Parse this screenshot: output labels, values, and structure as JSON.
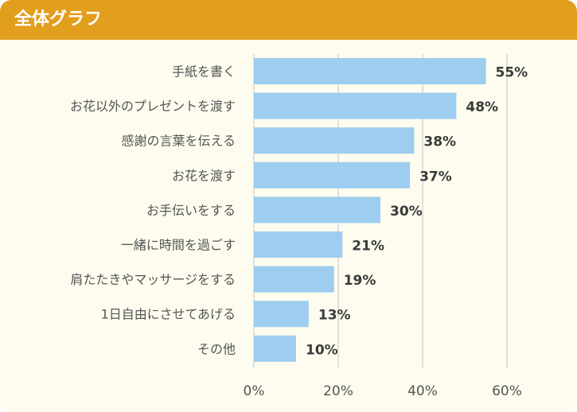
{
  "header": {
    "title": "全体グラフ"
  },
  "colors": {
    "header": "#e29e1d",
    "bar": "#9ecdef",
    "grid": "#d6d6d6",
    "background": "#fdfcef"
  },
  "chart_data": {
    "type": "bar",
    "orientation": "horizontal",
    "title": "全体グラフ",
    "categories": [
      "手紙を書く",
      "お花以外のプレゼントを渡す",
      "感謝の言葉を伝える",
      "お花を渡す",
      "お手伝いをする",
      "一緒に時間を過ごす",
      "肩たたきやマッサージをする",
      "1日自由にさせてあげる",
      "その他"
    ],
    "values": [
      55,
      48,
      38,
      37,
      30,
      21,
      19,
      13,
      10
    ],
    "value_labels": [
      "55%",
      "48%",
      "38%",
      "37%",
      "30%",
      "21%",
      "19%",
      "13%",
      "10%"
    ],
    "xlim": [
      0,
      60
    ],
    "xticks": [
      0,
      20,
      40,
      60
    ],
    "xtick_labels": [
      "0%",
      "20%",
      "40%",
      "60%"
    ],
    "grid": true
  }
}
